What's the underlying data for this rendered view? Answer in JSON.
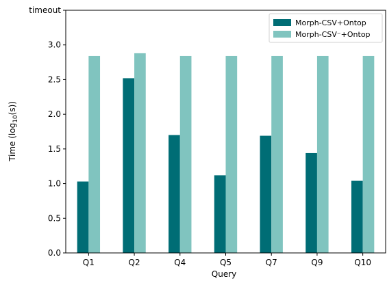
{
  "chart_data": {
    "type": "bar",
    "categories": [
      "Q1",
      "Q2",
      "Q4",
      "Q5",
      "Q7",
      "Q9",
      "Q10"
    ],
    "series": [
      {
        "name": "Morph-CSV+Ontop",
        "values": [
          1.03,
          2.52,
          1.7,
          1.12,
          1.69,
          1.44,
          1.04
        ],
        "color": "#006d75"
      },
      {
        "name": "Morph-CSV⁻+Ontop",
        "values": [
          2.84,
          2.88,
          2.84,
          2.84,
          2.84,
          2.84,
          2.84
        ],
        "color": "#80c4bf"
      }
    ],
    "xlabel": "Query",
    "ylabel": "Time (log",
    "ylabel_subscript": "10",
    "ylabel_suffix": "(s))",
    "ylim": [
      0,
      3.5
    ],
    "yticks": [
      {
        "value": 0.0,
        "label": "0.0"
      },
      {
        "value": 0.5,
        "label": "0.5"
      },
      {
        "value": 1.0,
        "label": "1.0"
      },
      {
        "value": 1.5,
        "label": "1.5"
      },
      {
        "value": 2.0,
        "label": "2.0"
      },
      {
        "value": 2.5,
        "label": "2.5"
      },
      {
        "value": 3.0,
        "label": "3.0"
      },
      {
        "value": 3.5,
        "label": "timeout"
      }
    ],
    "legend": "top-right",
    "grid": false
  }
}
